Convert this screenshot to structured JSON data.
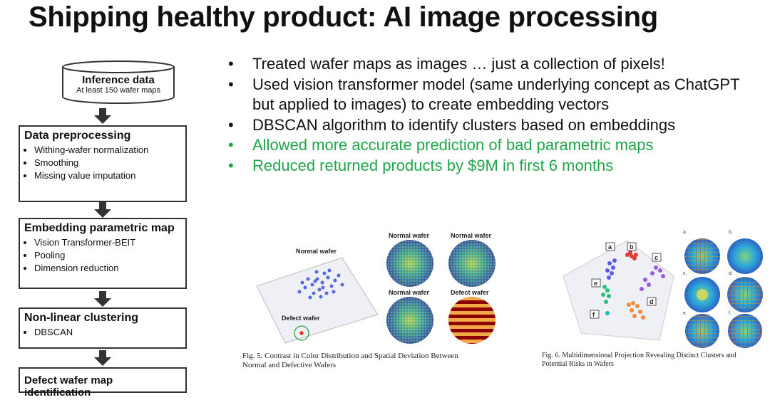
{
  "title": "Shipping healthy product: AI image processing",
  "flowchart": {
    "inference": {
      "title": "Inference data",
      "subtitle": "At least 150 wafer maps"
    },
    "boxes": [
      {
        "title": "Data preprocessing",
        "items": [
          "Withing-wafer normalization",
          "Smoothing",
          "Missing value imputation"
        ]
      },
      {
        "title": "Embedding parametric map",
        "items": [
          "Vision Transformer-BEIT",
          "Pooling",
          "Dimension reduction"
        ]
      },
      {
        "title": "Non-linear clustering",
        "items": [
          "DBSCAN"
        ]
      },
      {
        "title": "Defect wafer map identification",
        "items": []
      }
    ]
  },
  "bullets": [
    {
      "text": "Treated wafer maps as images … just a collection of pixels!",
      "color": "#111111"
    },
    {
      "text": "Used vision transformer model (same underlying concept as ChatGPT but applied to images) to create embedding vectors",
      "color": "#111111"
    },
    {
      "text": "DBSCAN algorithm to identify clusters based on embeddings",
      "color": "#111111"
    },
    {
      "text": "Allowed more accurate prediction of bad parametric maps",
      "color": "#1fa64a"
    },
    {
      "text": "Reduced returned products by $9M in first 6 months",
      "color": "#1fa64a"
    }
  ],
  "figure5": {
    "normal_label": "Normal wafer",
    "defect_label": "Defect wafer",
    "panel_labels": [
      "Normal wafer",
      "Normal wafer",
      "Normal wafer",
      "Defect wafer"
    ],
    "caption_line1": "Fig. 5. Contrast in Color Distribution and Spatial Deviation Between",
    "caption_line2": "Normal and Defective Wafers"
  },
  "figure6": {
    "cluster_labels": [
      "a",
      "b",
      "c",
      "d",
      "e",
      "f"
    ],
    "panel_labels": [
      "a.",
      "b.",
      "c.",
      "d.",
      "e.",
      "f."
    ],
    "caption_line1": "Fig. 6. Multidimensional Projection Revealing Distinct Clusters and",
    "caption_line2": "Potential Risks in Wafers"
  },
  "colors": {
    "accent_green": "#1fa64a",
    "box_border": "#333333"
  }
}
